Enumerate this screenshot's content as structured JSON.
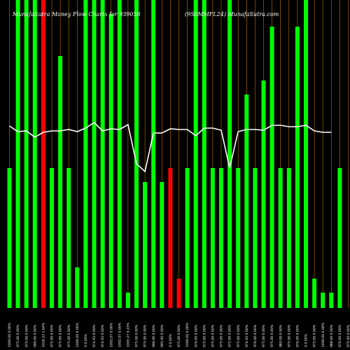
{
  "chart_data": {
    "type": "bar",
    "title_left": "MunafaSutra  Money Flow  Charts for 939058",
    "title_right": "(950MMFL24) MunafaSutra.com",
    "ylim": [
      0,
      440
    ],
    "grid": "vertical",
    "colors": {
      "background": "#000000",
      "up": "#00ff00",
      "down": "#ff0000",
      "grid": "#ff9900",
      "line": "#ffffff"
    },
    "categories": [
      "1000.00 0.00%",
      "975.00 0.00%",
      "975.00 0.00%",
      "990.00 0.00%",
      "1016.23 1.64%",
      "975.00 0.00%",
      "975.00 0.00%",
      "975.00 0.00%",
      "1000.00 0.00%",
      "0 0.00%",
      "974.93 0.00%",
      "974.93 0.00%",
      "1002.07 0.00%",
      "1002.07 0.00%",
      "1003.27 0.23%",
      "975.00 0.00%",
      "975.00 0.00%",
      "996.00 0.00%",
      "995.00 0.00%",
      "0 0.00%",
      "975.00 0.00%",
      "1000.00 0.00%",
      "976.00 0.00%",
      "975.00 0.00%",
      "975.00 0.00%",
      "975.00 0.00%",
      "975.00 0.00%",
      "975.00 0.00%",
      "974.93 0.00%",
      "976.00 0.00%",
      "975.00 0.00%",
      "975.00 0.00%",
      "980.00 0.00%",
      "975.00 0.00%",
      "976.00 0.00%",
      "0 0.00%",
      "975.00 0.00%",
      "1000.00 0.00%",
      "988.00 0.00%",
      "976.00 0.00%",
      "975.00 0.00%",
      "975.00 0.00%"
    ],
    "values": [
      200,
      440,
      440,
      440,
      440,
      200,
      360,
      200,
      58,
      440,
      440,
      440,
      420,
      440,
      22,
      440,
      180,
      440,
      180,
      200,
      42,
      200,
      440,
      440,
      200,
      200,
      440,
      200,
      305,
      200,
      325,
      402,
      200,
      200,
      402,
      440,
      42,
      22,
      22,
      200,
      0,
      0
    ],
    "bar_colors": [
      "up",
      "up",
      "up",
      "up",
      "down",
      "up",
      "up",
      "up",
      "up",
      "up",
      "up",
      "up",
      "up",
      "up",
      "up",
      "up",
      "up",
      "up",
      "up",
      "down",
      "down",
      "up",
      "up",
      "up",
      "up",
      "up",
      "up",
      "up",
      "up",
      "up",
      "up",
      "up",
      "up",
      "up",
      "up",
      "up",
      "up",
      "up",
      "up",
      "up",
      "up",
      "up"
    ],
    "line_values": [
      260,
      252,
      253,
      244,
      251,
      253,
      253,
      255,
      252,
      257,
      265,
      253,
      256,
      255,
      262,
      206,
      195,
      250,
      250,
      256,
      255,
      255,
      246,
      257,
      257,
      254,
      200,
      252,
      255,
      255,
      254,
      261,
      261,
      259,
      259,
      261,
      253,
      251,
      251,
      0,
      0,
      0
    ]
  }
}
